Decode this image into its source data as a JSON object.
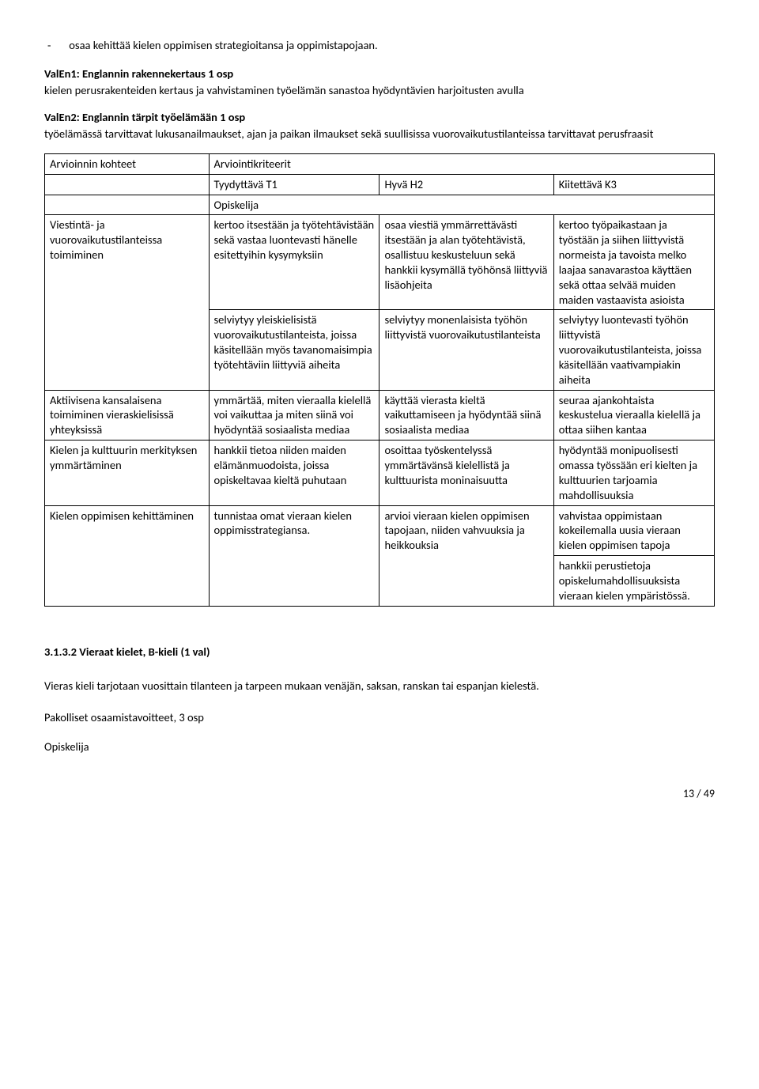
{
  "bullet": "osaa kehittää kielen oppimisen strategioitansa ja oppimistapojaan.",
  "section1": {
    "title": "ValEn1: Englannin rakennekertaus 1 osp",
    "desc": "kielen perusrakenteiden kertaus ja vahvistaminen työelämän sanastoa hyödyntävien harjoitusten avulla"
  },
  "section2": {
    "title": "ValEn2: Englannin tärpit työelämään 1 osp",
    "desc": "työelämässä tarvittavat lukusanailmaukset, ajan ja paikan ilmaukset sekä suullisissa vuorovaikutustilanteissa tarvittavat perusfraasit"
  },
  "table": {
    "head": {
      "arvioinnin": "Arvioinnin kohteet",
      "kriteerit": "Arviointikriteerit",
      "t1": "Tyydyttävä T1",
      "h2": "Hyvä H2",
      "k3": "Kiitettävä K3",
      "opiskelija": "Opiskelija"
    },
    "rows": [
      {
        "label": "Viestintä- ja vuorovaikutustilanteissa toimiminen",
        "t1": "kertoo itsestään ja työtehtävistään sekä vastaa luontevasti hänelle esitettyihin kysymyksiin",
        "h2": "osaa viestiä ymmärrettävästi itsestään ja alan työtehtävistä, osallistuu keskusteluun sekä hankkii kysymällä työhönsä liittyviä lisäohjeita",
        "k3": "kertoo työpaikastaan ja työstään ja siihen liittyvistä normeista ja tavoista melko laajaa sanavarastoa käyttäen sekä ottaa selvää muiden maiden vastaavista asioista"
      },
      {
        "label": "",
        "t1": "selviytyy yleiskielisistä vuorovaikutustilanteista, joissa käsitellään myös tavanomaisimpia työtehtäviin liittyviä aiheita",
        "h2": "selviytyy monenlaisista työhön liittyvistä vuorovaikutustilanteista",
        "k3": "selviytyy luontevasti työhön liittyvistä vuorovaikutustilanteista, joissa käsitellään vaativampiakin aiheita"
      },
      {
        "label": "Aktiivisena kansalaisena toimiminen vieraskielisissä yhteyksissä",
        "t1": "ymmärtää, miten vieraalla kielellä voi vaikuttaa ja miten siinä voi hyödyntää sosiaalista mediaa",
        "h2": "käyttää vierasta kieltä vaikuttamiseen ja hyödyntää siinä sosiaalista mediaa",
        "k3": "seuraa ajankohtaista keskustelua vieraalla kielellä ja ottaa siihen kantaa"
      },
      {
        "label": "Kielen ja kulttuurin merkityksen ymmärtäminen",
        "t1": "hankkii tietoa niiden maiden elämänmuodoista, joissa opiskeltavaa kieltä puhutaan",
        "h2": "osoittaa työskentelyssä ymmärtävänsä kielellistä ja kulttuurista moninaisuutta",
        "k3": "hyödyntää monipuolisesti omassa työssään eri kielten ja kulttuurien tarjoamia mahdollisuuksia"
      },
      {
        "label": "Kielen oppimisen kehittäminen",
        "t1": "tunnistaa omat vieraan kielen oppimisstrategiansa.",
        "h2": "arvioi vieraan kielen oppimisen tapojaan, niiden vahvuuksia ja heikkouksia",
        "k3": "vahvistaa oppimistaan kokeilemalla uusia vieraan kielen oppimisen tapoja"
      },
      {
        "label": "",
        "t1": "",
        "h2": "",
        "k3": "hankkii perustietoja opiskelumahdollisuuksista vieraan kielen ympäristössä."
      }
    ]
  },
  "heading2": "3.1.3.2 Vieraat kielet, B-kieli (1 val)",
  "body1": "Vieras kieli tarjotaan vuosittain tilanteen ja tarpeen mukaan venäjän, saksan, ranskan tai espanjan kielestä.",
  "body2": "Pakolliset osaamistavoitteet, 3 osp",
  "body3": "Opiskelija",
  "pageNum": "13 / 49"
}
